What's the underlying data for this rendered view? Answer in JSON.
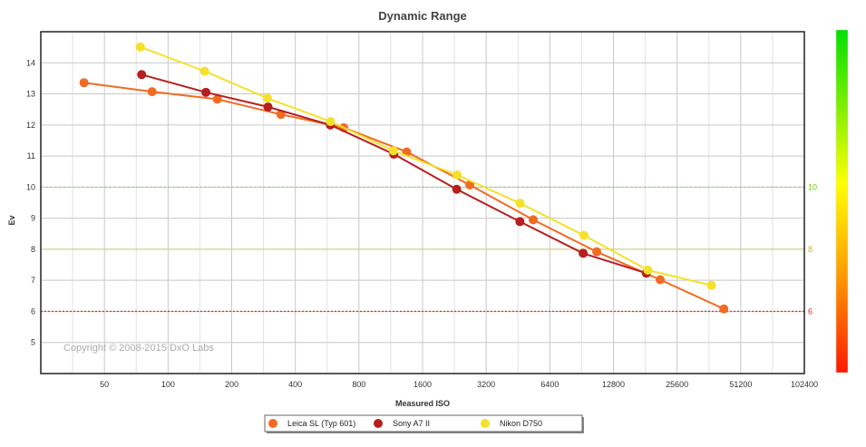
{
  "chart_data": {
    "type": "line",
    "title": "Dynamic Range",
    "xlabel": "Measured ISO",
    "ylabel": "Ev",
    "x_scale": "log2",
    "xlim": [
      25,
      102400
    ],
    "ylim": [
      4,
      15
    ],
    "x_ticks": [
      {
        "value": 50,
        "label": "50"
      },
      {
        "value": 100,
        "label": "100"
      },
      {
        "value": 200,
        "label": "200"
      },
      {
        "value": 400,
        "label": "400"
      },
      {
        "value": 800,
        "label": "800"
      },
      {
        "value": 1600,
        "label": "1600"
      },
      {
        "value": 3200,
        "label": "3200"
      },
      {
        "value": 6400,
        "label": "6400"
      },
      {
        "value": 12800,
        "label": "12800"
      },
      {
        "value": 25600,
        "label": "25600"
      },
      {
        "value": 51200,
        "label": "51200"
      },
      {
        "value": 102400,
        "label": "102400"
      }
    ],
    "y_ticks": [
      {
        "value": 5,
        "label": "5"
      },
      {
        "value": 6,
        "label": "6"
      },
      {
        "value": 7,
        "label": "7"
      },
      {
        "value": 8,
        "label": "8"
      },
      {
        "value": 9,
        "label": "9"
      },
      {
        "value": 10,
        "label": "10"
      },
      {
        "value": 11,
        "label": "11"
      },
      {
        "value": 12,
        "label": "12"
      },
      {
        "value": 13,
        "label": "13"
      },
      {
        "value": 14,
        "label": "14"
      }
    ],
    "reference_lines": [
      {
        "value": 10,
        "label": "10",
        "color": "#8fcf6f",
        "label_color": "#66cc00",
        "style": "dashed"
      },
      {
        "value": 8,
        "label": "8",
        "color": "#cfcf6f",
        "label_color": "#e0b400",
        "style": "solid"
      },
      {
        "value": 6,
        "label": "6",
        "color": "#dd3333",
        "label_color": "#dd2222",
        "style": "dotted"
      }
    ],
    "series": [
      {
        "name": "Leica SL (Typ 601)",
        "color": "#f26b21",
        "points": [
          [
            40,
            13.36
          ],
          [
            84,
            13.07
          ],
          [
            171,
            12.83
          ],
          [
            342,
            12.34
          ],
          [
            678,
            11.91
          ],
          [
            1346,
            11.13
          ],
          [
            2675,
            10.07
          ],
          [
            5340,
            8.95
          ],
          [
            10670,
            7.92
          ],
          [
            21300,
            7.02
          ],
          [
            42600,
            6.08
          ]
        ]
      },
      {
        "name": "Sony A7 II",
        "color": "#b81e1e",
        "points": [
          [
            75,
            13.62
          ],
          [
            151,
            13.05
          ],
          [
            297,
            12.58
          ],
          [
            586,
            12.0
          ],
          [
            1170,
            11.06
          ],
          [
            2320,
            9.93
          ],
          [
            4620,
            8.89
          ],
          [
            9200,
            7.87
          ],
          [
            18300,
            7.23
          ]
        ]
      },
      {
        "name": "Nikon D750",
        "color": "#f5e12a",
        "points": [
          [
            74,
            14.51
          ],
          [
            149,
            13.73
          ],
          [
            295,
            12.86
          ],
          [
            587,
            12.11
          ],
          [
            1165,
            11.17
          ],
          [
            2336,
            10.39
          ],
          [
            4628,
            9.48
          ],
          [
            9277,
            8.45
          ],
          [
            18620,
            7.33
          ],
          [
            37200,
            6.84
          ]
        ]
      }
    ],
    "annotations": [
      "Copyright © 2008-2015 DxO Labs"
    ],
    "legend_position": "bottom-center",
    "grid": true
  }
}
